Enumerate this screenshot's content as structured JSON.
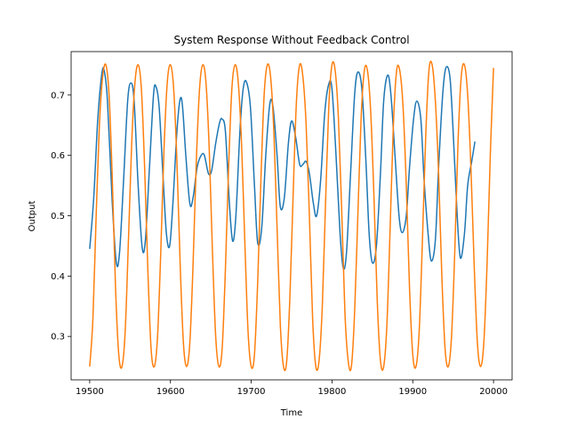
{
  "chart_data": {
    "type": "line",
    "title": "System Response Without Feedback Control",
    "xlabel": "Time",
    "ylabel": "Output",
    "xlim": [
      19477,
      20023
    ],
    "ylim": [
      0.228,
      0.772
    ],
    "xticks": [
      19500,
      19600,
      19700,
      19800,
      19900,
      20000
    ],
    "yticks": [
      0.3,
      0.4,
      0.5,
      0.6,
      0.7
    ],
    "grid": false,
    "legend": "none",
    "series": [
      {
        "color": "#1f77b4",
        "points": [
          [
            19500,
            0.445
          ],
          [
            19505,
            0.53
          ],
          [
            19510,
            0.66
          ],
          [
            19515,
            0.735
          ],
          [
            19518,
            0.74
          ],
          [
            19522,
            0.69
          ],
          [
            19528,
            0.52
          ],
          [
            19533,
            0.422
          ],
          [
            19537,
            0.44
          ],
          [
            19542,
            0.56
          ],
          [
            19547,
            0.69
          ],
          [
            19551,
            0.72
          ],
          [
            19555,
            0.69
          ],
          [
            19560,
            0.55
          ],
          [
            19565,
            0.447
          ],
          [
            19569,
            0.46
          ],
          [
            19574,
            0.58
          ],
          [
            19579,
            0.7
          ],
          [
            19582,
            0.714
          ],
          [
            19586,
            0.68
          ],
          [
            19591,
            0.56
          ],
          [
            19595,
            0.47
          ],
          [
            19599,
            0.45
          ],
          [
            19603,
            0.52
          ],
          [
            19608,
            0.64
          ],
          [
            19612,
            0.693
          ],
          [
            19615,
            0.68
          ],
          [
            19619,
            0.6
          ],
          [
            19624,
            0.52
          ],
          [
            19628,
            0.53
          ],
          [
            19633,
            0.58
          ],
          [
            19638,
            0.6
          ],
          [
            19642,
            0.6
          ],
          [
            19647,
            0.57
          ],
          [
            19651,
            0.575
          ],
          [
            19656,
            0.62
          ],
          [
            19661,
            0.655
          ],
          [
            19664,
            0.66
          ],
          [
            19668,
            0.64
          ],
          [
            19673,
            0.52
          ],
          [
            19677,
            0.458
          ],
          [
            19681,
            0.5
          ],
          [
            19686,
            0.64
          ],
          [
            19690,
            0.71
          ],
          [
            19694,
            0.722
          ],
          [
            19699,
            0.68
          ],
          [
            19704,
            0.55
          ],
          [
            19708,
            0.455
          ],
          [
            19713,
            0.48
          ],
          [
            19718,
            0.6
          ],
          [
            19723,
            0.685
          ],
          [
            19727,
            0.68
          ],
          [
            19732,
            0.6
          ],
          [
            19736,
            0.515
          ],
          [
            19741,
            0.53
          ],
          [
            19746,
            0.62
          ],
          [
            19750,
            0.657
          ],
          [
            19755,
            0.63
          ],
          [
            19760,
            0.585
          ],
          [
            19764,
            0.585
          ],
          [
            19768,
            0.59
          ],
          [
            19772,
            0.57
          ],
          [
            19777,
            0.52
          ],
          [
            19781,
            0.5
          ],
          [
            19786,
            0.56
          ],
          [
            19791,
            0.67
          ],
          [
            19796,
            0.718
          ],
          [
            19800,
            0.71
          ],
          [
            19805,
            0.6
          ],
          [
            19810,
            0.47
          ],
          [
            19814,
            0.413
          ],
          [
            19818,
            0.44
          ],
          [
            19823,
            0.57
          ],
          [
            19828,
            0.7
          ],
          [
            19832,
            0.738
          ],
          [
            19837,
            0.71
          ],
          [
            19842,
            0.59
          ],
          [
            19846,
            0.47
          ],
          [
            19850,
            0.422
          ],
          [
            19855,
            0.45
          ],
          [
            19860,
            0.57
          ],
          [
            19864,
            0.69
          ],
          [
            19869,
            0.733
          ],
          [
            19873,
            0.7
          ],
          [
            19878,
            0.6
          ],
          [
            19883,
            0.5
          ],
          [
            19887,
            0.472
          ],
          [
            19892,
            0.5
          ],
          [
            19896,
            0.58
          ],
          [
            19901,
            0.66
          ],
          [
            19905,
            0.69
          ],
          [
            19910,
            0.66
          ],
          [
            19914,
            0.56
          ],
          [
            19919,
            0.47
          ],
          [
            19923,
            0.425
          ],
          [
            19928,
            0.46
          ],
          [
            19932,
            0.58
          ],
          [
            19937,
            0.7
          ],
          [
            19941,
            0.745
          ],
          [
            19946,
            0.73
          ],
          [
            19950,
            0.64
          ],
          [
            19955,
            0.5
          ],
          [
            19959,
            0.43
          ],
          [
            19964,
            0.47
          ],
          [
            19968,
            0.55
          ],
          [
            19973,
            0.59
          ],
          [
            19977,
            0.623
          ]
        ]
      },
      {
        "color": "#ff7f0e",
        "points": [
          [
            19500,
            0.25
          ],
          [
            19504,
            0.33
          ],
          [
            19508,
            0.5
          ],
          [
            19512,
            0.65
          ],
          [
            19516,
            0.73
          ],
          [
            19520,
            0.75
          ],
          [
            19524,
            0.7
          ],
          [
            19528,
            0.56
          ],
          [
            19532,
            0.38
          ],
          [
            19536,
            0.27
          ],
          [
            19540,
            0.25
          ],
          [
            19544,
            0.31
          ],
          [
            19548,
            0.46
          ],
          [
            19552,
            0.62
          ],
          [
            19556,
            0.72
          ],
          [
            19560,
            0.75
          ],
          [
            19564,
            0.71
          ],
          [
            19568,
            0.58
          ],
          [
            19572,
            0.41
          ],
          [
            19576,
            0.28
          ],
          [
            19580,
            0.25
          ],
          [
            19584,
            0.3
          ],
          [
            19588,
            0.44
          ],
          [
            19592,
            0.61
          ],
          [
            19596,
            0.72
          ],
          [
            19600,
            0.75
          ],
          [
            19604,
            0.71
          ],
          [
            19608,
            0.59
          ],
          [
            19612,
            0.42
          ],
          [
            19616,
            0.29
          ],
          [
            19620,
            0.25
          ],
          [
            19624,
            0.29
          ],
          [
            19628,
            0.42
          ],
          [
            19632,
            0.59
          ],
          [
            19636,
            0.71
          ],
          [
            19640,
            0.75
          ],
          [
            19644,
            0.72
          ],
          [
            19648,
            0.61
          ],
          [
            19652,
            0.44
          ],
          [
            19656,
            0.3
          ],
          [
            19660,
            0.25
          ],
          [
            19664,
            0.28
          ],
          [
            19668,
            0.41
          ],
          [
            19672,
            0.58
          ],
          [
            19676,
            0.71
          ],
          [
            19680,
            0.75
          ],
          [
            19684,
            0.72
          ],
          [
            19688,
            0.62
          ],
          [
            19692,
            0.46
          ],
          [
            19696,
            0.31
          ],
          [
            19700,
            0.25
          ],
          [
            19704,
            0.27
          ],
          [
            19708,
            0.39
          ],
          [
            19712,
            0.56
          ],
          [
            19716,
            0.7
          ],
          [
            19720,
            0.75
          ],
          [
            19724,
            0.73
          ],
          [
            19728,
            0.64
          ],
          [
            19732,
            0.48
          ],
          [
            19736,
            0.32
          ],
          [
            19740,
            0.25
          ],
          [
            19744,
            0.26
          ],
          [
            19748,
            0.37
          ],
          [
            19752,
            0.54
          ],
          [
            19756,
            0.69
          ],
          [
            19760,
            0.75
          ],
          [
            19764,
            0.73
          ],
          [
            19768,
            0.65
          ],
          [
            19772,
            0.5
          ],
          [
            19776,
            0.33
          ],
          [
            19780,
            0.25
          ],
          [
            19784,
            0.26
          ],
          [
            19788,
            0.35
          ],
          [
            19792,
            0.52
          ],
          [
            19796,
            0.68
          ],
          [
            19800,
            0.75
          ],
          [
            19804,
            0.74
          ],
          [
            19808,
            0.66
          ],
          [
            19812,
            0.51
          ],
          [
            19816,
            0.34
          ],
          [
            19820,
            0.26
          ],
          [
            19824,
            0.25
          ],
          [
            19828,
            0.34
          ],
          [
            19832,
            0.5
          ],
          [
            19836,
            0.66
          ],
          [
            19840,
            0.74
          ],
          [
            19844,
            0.74
          ],
          [
            19848,
            0.67
          ],
          [
            19852,
            0.53
          ],
          [
            19856,
            0.36
          ],
          [
            19860,
            0.26
          ],
          [
            19864,
            0.25
          ],
          [
            19868,
            0.32
          ],
          [
            19872,
            0.48
          ],
          [
            19876,
            0.65
          ],
          [
            19880,
            0.74
          ],
          [
            19884,
            0.74
          ],
          [
            19888,
            0.68
          ],
          [
            19892,
            0.55
          ],
          [
            19896,
            0.38
          ],
          [
            19900,
            0.27
          ],
          [
            19904,
            0.25
          ],
          [
            19908,
            0.31
          ],
          [
            19912,
            0.46
          ],
          [
            19916,
            0.63
          ],
          [
            19920,
            0.74
          ],
          [
            19924,
            0.75
          ],
          [
            19928,
            0.69
          ],
          [
            19932,
            0.57
          ],
          [
            19936,
            0.4
          ],
          [
            19940,
            0.28
          ],
          [
            19944,
            0.25
          ],
          [
            19948,
            0.3
          ],
          [
            19952,
            0.44
          ],
          [
            19956,
            0.62
          ],
          [
            19960,
            0.73
          ],
          [
            19964,
            0.75
          ],
          [
            19968,
            0.7
          ],
          [
            19972,
            0.58
          ],
          [
            19976,
            0.42
          ],
          [
            19980,
            0.29
          ],
          [
            19984,
            0.25
          ],
          [
            19988,
            0.29
          ],
          [
            19992,
            0.42
          ],
          [
            19996,
            0.6
          ],
          [
            20000,
            0.745
          ]
        ]
      }
    ]
  }
}
